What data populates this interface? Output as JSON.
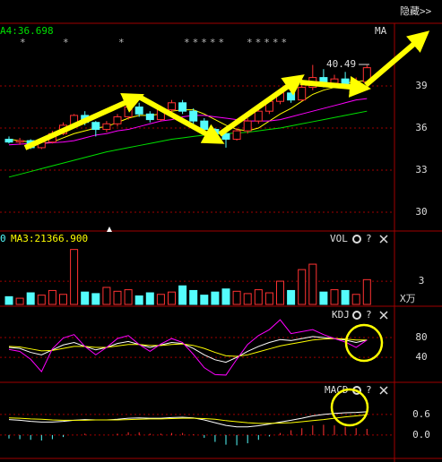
{
  "toolbar": {
    "hide": "隐藏>>"
  },
  "chart_data": [
    {
      "type": "candlestick",
      "label": "A4:36.698",
      "ma_label": "MA",
      "annotation": "40.49",
      "stars": [
        "*",
        "*",
        "*",
        "*****",
        "*****"
      ],
      "up_color": "#ff3232",
      "down_color": "#54fcfc",
      "open": [
        35.2,
        35.0,
        35.1,
        34.6,
        35.0,
        35.6,
        36.2,
        36.9,
        36.4,
        35.9,
        36.3,
        36.8,
        37.5,
        37.0,
        36.6,
        37.3,
        37.8,
        37.2,
        36.5,
        35.9,
        35.6,
        35.2,
        35.8,
        36.5,
        37.2,
        37.9,
        38.5,
        38.0,
        38.9,
        39.6,
        39.2,
        39.5,
        39.0,
        39.3
      ],
      "high": [
        35.4,
        35.3,
        35.2,
        35.1,
        35.8,
        36.4,
        37.0,
        37.2,
        36.5,
        36.5,
        37.0,
        37.7,
        37.8,
        37.2,
        37.6,
        38.0,
        38.0,
        37.4,
        36.7,
        36.0,
        35.8,
        36.0,
        36.7,
        37.4,
        38.1,
        38.8,
        38.9,
        39.5,
        40.5,
        40.2,
        39.8,
        40.0,
        39.6,
        40.49
      ],
      "low": [
        34.9,
        34.8,
        34.5,
        34.5,
        34.9,
        35.5,
        36.0,
        36.2,
        35.4,
        35.7,
        36.1,
        36.6,
        36.8,
        36.4,
        36.5,
        37.0,
        37.0,
        36.3,
        35.8,
        35.3,
        34.6,
        35.1,
        35.6,
        36.3,
        37.0,
        37.7,
        37.8,
        37.9,
        38.7,
        38.9,
        38.9,
        38.8,
        38.6,
        39.0
      ],
      "close": [
        35.0,
        35.1,
        34.6,
        35.0,
        35.6,
        36.2,
        36.9,
        36.4,
        35.9,
        36.3,
        36.8,
        37.5,
        37.0,
        36.6,
        37.3,
        37.8,
        37.2,
        36.5,
        35.9,
        35.6,
        35.2,
        35.8,
        36.5,
        37.2,
        37.9,
        38.5,
        38.0,
        38.9,
        39.6,
        39.2,
        39.5,
        39.0,
        39.3,
        40.3
      ],
      "series": [
        {
          "color": "#ffff00",
          "values": [
            35.2,
            35.1,
            35.0,
            34.9,
            35.0,
            35.3,
            35.6,
            35.8,
            36.0,
            36.1,
            36.4,
            36.7,
            36.9,
            36.9,
            37.0,
            37.2,
            37.3,
            37.3,
            37.0,
            36.6,
            36.2,
            35.9,
            35.8,
            36.0,
            36.5,
            37.0,
            37.4,
            37.9,
            38.4,
            38.7,
            38.9,
            39.2,
            39.3,
            39.4
          ]
        },
        {
          "color": "#ff00ff",
          "values": [
            34.8,
            34.85,
            34.9,
            34.9,
            34.95,
            35.0,
            35.1,
            35.3,
            35.5,
            35.6,
            35.8,
            35.9,
            36.1,
            36.3,
            36.5,
            36.6,
            36.8,
            36.9,
            36.9,
            36.8,
            36.7,
            36.6,
            36.5,
            36.5,
            36.5,
            36.6,
            36.8,
            37.0,
            37.2,
            37.4,
            37.6,
            37.8,
            38.0,
            38.1
          ]
        },
        {
          "color": "#00e000",
          "values": [
            32.5,
            32.7,
            32.9,
            33.1,
            33.3,
            33.5,
            33.7,
            33.9,
            34.1,
            34.3,
            34.45,
            34.6,
            34.75,
            34.9,
            35.05,
            35.2,
            35.3,
            35.4,
            35.5,
            35.55,
            35.6,
            35.65,
            35.7,
            35.8,
            35.9,
            36.0,
            36.15,
            36.3,
            36.45,
            36.6,
            36.75,
            36.9,
            37.05,
            37.2
          ]
        }
      ],
      "ylim": [
        28.85,
        43.34
      ],
      "yticks": [
        30,
        33,
        36,
        39
      ],
      "grid": true
    },
    {
      "type": "bar",
      "title": "VOL",
      "help": "?",
      "left_label": "0",
      "label": "MA3:21366.900",
      "unit": "X万",
      "values": [
        1.0,
        0.8,
        1.5,
        1.2,
        1.8,
        1.3,
        7.1,
        1.6,
        1.4,
        2.2,
        1.7,
        1.9,
        1.1,
        1.5,
        1.3,
        1.6,
        2.4,
        1.8,
        1.2,
        1.6,
        2.0,
        1.7,
        1.4,
        1.9,
        1.5,
        3.0,
        1.8,
        4.5,
        5.2,
        1.6,
        1.9,
        1.8,
        1.3,
        3.2
      ],
      "ylim": [
        0,
        8.1
      ],
      "yticks": [
        3
      ],
      "grid": true
    },
    {
      "type": "line",
      "title": "KDJ",
      "help": "?",
      "series": [
        {
          "color": "#ffffff",
          "values": [
            60,
            58,
            50,
            45,
            55,
            65,
            70,
            62,
            55,
            60,
            68,
            72,
            66,
            60,
            65,
            70,
            68,
            58,
            45,
            35,
            30,
            40,
            52,
            62,
            70,
            76,
            74,
            78,
            82,
            80,
            78,
            75,
            70,
            75
          ]
        },
        {
          "color": "#ffff00",
          "values": [
            62,
            61,
            57,
            53,
            54,
            58,
            62,
            62,
            60,
            60,
            63,
            66,
            66,
            64,
            64,
            66,
            67,
            64,
            58,
            50,
            43,
            42,
            45,
            51,
            57,
            63,
            67,
            71,
            75,
            77,
            78,
            77,
            75,
            75
          ]
        },
        {
          "color": "#ff00ff",
          "values": [
            56,
            52,
            36,
            11,
            57,
            79,
            86,
            62,
            45,
            60,
            78,
            84,
            66,
            52,
            67,
            78,
            70,
            46,
            19,
            5,
            4,
            36,
            66,
            84,
            96,
            116,
            88,
            92,
            96,
            86,
            78,
            71,
            60,
            75
          ]
        }
      ],
      "ylim": [
        -7,
        138
      ],
      "yticks": [
        40,
        80
      ],
      "grid": true
    },
    {
      "type": "macd",
      "title": "MACD",
      "help": "?",
      "series": [
        {
          "color": "#ffffff",
          "values": [
            0.45,
            0.43,
            0.4,
            0.38,
            0.38,
            0.4,
            0.43,
            0.45,
            0.44,
            0.44,
            0.46,
            0.49,
            0.5,
            0.49,
            0.49,
            0.51,
            0.52,
            0.5,
            0.44,
            0.36,
            0.28,
            0.24,
            0.24,
            0.27,
            0.32,
            0.38,
            0.43,
            0.49,
            0.56,
            0.6,
            0.63,
            0.65,
            0.66,
            0.68
          ]
        },
        {
          "color": "#ffff00",
          "values": [
            0.5,
            0.49,
            0.47,
            0.46,
            0.44,
            0.43,
            0.43,
            0.43,
            0.44,
            0.44,
            0.44,
            0.45,
            0.46,
            0.47,
            0.47,
            0.48,
            0.49,
            0.49,
            0.48,
            0.46,
            0.42,
            0.39,
            0.36,
            0.34,
            0.34,
            0.35,
            0.36,
            0.39,
            0.42,
            0.45,
            0.49,
            0.53,
            0.56,
            0.59
          ]
        }
      ],
      "histogram": [
        -0.1,
        -0.12,
        -0.14,
        -0.16,
        -0.12,
        -0.06,
        0,
        0.04,
        0,
        0,
        0.04,
        0.08,
        0.08,
        0.04,
        0.04,
        0.06,
        0.06,
        0.02,
        -0.08,
        -0.2,
        -0.28,
        -0.3,
        -0.24,
        -0.14,
        -0.04,
        0.06,
        0.14,
        0.2,
        0.28,
        0.3,
        0.28,
        0.24,
        0.2,
        0.18
      ],
      "ylim": [
        -0.63,
        1.46
      ],
      "yticks": [
        {
          "value": 0,
          "label": "0.0"
        },
        0.6
      ],
      "grid": true
    }
  ]
}
